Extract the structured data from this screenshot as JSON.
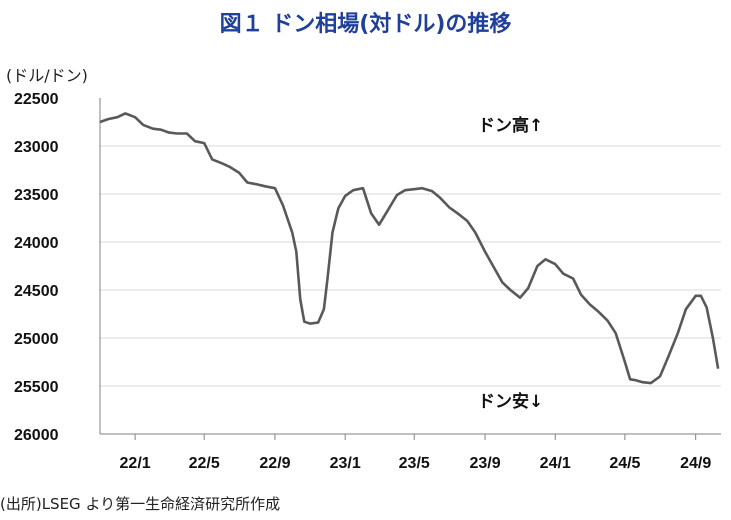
{
  "chart_data": {
    "type": "line",
    "title": "図１ ドン相場(対ドル)の推移",
    "ylabel": "(ドル/ドン)",
    "xlabel": "",
    "yaxis_inverted": true,
    "ylim": [
      22500,
      26000
    ],
    "yticks": [
      "22500",
      "23000",
      "23500",
      "24000",
      "24500",
      "25000",
      "25500",
      "26000"
    ],
    "xticks": [
      {
        "label": "22/1",
        "x": "2022-01"
      },
      {
        "label": "22/5",
        "x": "2022-05"
      },
      {
        "label": "22/9",
        "x": "2022-09"
      },
      {
        "label": "23/1",
        "x": "2023-01"
      },
      {
        "label": "23/5",
        "x": "2023-05"
      },
      {
        "label": "23/9",
        "x": "2023-09"
      },
      {
        "label": "24/1",
        "x": "2024-01"
      },
      {
        "label": "24/5",
        "x": "2024-05"
      },
      {
        "label": "24/9",
        "x": "2024-09"
      }
    ],
    "grid": "horizontal",
    "line_color": "#595959",
    "annotations": [
      {
        "text": "ドン高↑",
        "position": "top-right"
      },
      {
        "text": "ドン安↓",
        "position": "bottom-right"
      }
    ],
    "series": [
      {
        "points": [
          [
            "2021-11-01",
            22750
          ],
          [
            "2021-11-15",
            22720
          ],
          [
            "2021-12-01",
            22700
          ],
          [
            "2021-12-15",
            22660
          ],
          [
            "2022-01-01",
            22700
          ],
          [
            "2022-01-15",
            22780
          ],
          [
            "2022-02-01",
            22820
          ],
          [
            "2022-02-15",
            22830
          ],
          [
            "2022-03-01",
            22860
          ],
          [
            "2022-03-15",
            22870
          ],
          [
            "2022-04-01",
            22870
          ],
          [
            "2022-04-15",
            22950
          ],
          [
            "2022-05-01",
            22970
          ],
          [
            "2022-05-15",
            23140
          ],
          [
            "2022-06-01",
            23180
          ],
          [
            "2022-06-15",
            23220
          ],
          [
            "2022-07-01",
            23280
          ],
          [
            "2022-07-15",
            23380
          ],
          [
            "2022-08-01",
            23400
          ],
          [
            "2022-08-15",
            23420
          ],
          [
            "2022-09-01",
            23440
          ],
          [
            "2022-09-15",
            23620
          ],
          [
            "2022-10-01",
            23900
          ],
          [
            "2022-10-08",
            24100
          ],
          [
            "2022-10-15",
            24600
          ],
          [
            "2022-10-22",
            24830
          ],
          [
            "2022-11-01",
            24850
          ],
          [
            "2022-11-15",
            24840
          ],
          [
            "2022-11-25",
            24700
          ],
          [
            "2022-12-01",
            24400
          ],
          [
            "2022-12-10",
            23900
          ],
          [
            "2022-12-20",
            23650
          ],
          [
            "2023-01-01",
            23520
          ],
          [
            "2023-01-15",
            23460
          ],
          [
            "2023-02-01",
            23440
          ],
          [
            "2023-02-15",
            23700
          ],
          [
            "2023-03-01",
            23820
          ],
          [
            "2023-03-15",
            23680
          ],
          [
            "2023-04-01",
            23510
          ],
          [
            "2023-04-15",
            23460
          ],
          [
            "2023-05-01",
            23450
          ],
          [
            "2023-05-15",
            23440
          ],
          [
            "2023-06-01",
            23470
          ],
          [
            "2023-06-15",
            23540
          ],
          [
            "2023-07-01",
            23640
          ],
          [
            "2023-07-15",
            23700
          ],
          [
            "2023-08-01",
            23780
          ],
          [
            "2023-08-15",
            23900
          ],
          [
            "2023-09-01",
            24100
          ],
          [
            "2023-09-15",
            24250
          ],
          [
            "2023-10-01",
            24420
          ],
          [
            "2023-10-15",
            24500
          ],
          [
            "2023-11-01",
            24580
          ],
          [
            "2023-11-15",
            24480
          ],
          [
            "2023-12-01",
            24250
          ],
          [
            "2023-12-15",
            24180
          ],
          [
            "2024-01-01",
            24230
          ],
          [
            "2024-01-15",
            24330
          ],
          [
            "2024-02-01",
            24380
          ],
          [
            "2024-02-15",
            24550
          ],
          [
            "2024-03-01",
            24650
          ],
          [
            "2024-03-15",
            24720
          ],
          [
            "2024-04-01",
            24820
          ],
          [
            "2024-04-15",
            24950
          ],
          [
            "2024-05-01",
            25250
          ],
          [
            "2024-05-10",
            25430
          ],
          [
            "2024-05-20",
            25440
          ],
          [
            "2024-06-01",
            25460
          ],
          [
            "2024-06-15",
            25470
          ],
          [
            "2024-07-01",
            25400
          ],
          [
            "2024-07-15",
            25200
          ],
          [
            "2024-08-01",
            24950
          ],
          [
            "2024-08-15",
            24700
          ],
          [
            "2024-09-01",
            24560
          ],
          [
            "2024-09-10",
            24560
          ],
          [
            "2024-09-20",
            24680
          ],
          [
            "2024-10-01",
            25000
          ],
          [
            "2024-10-10",
            25320
          ]
        ]
      }
    ]
  },
  "source": "(出所)LSEG より第一生命経済研究所作成"
}
